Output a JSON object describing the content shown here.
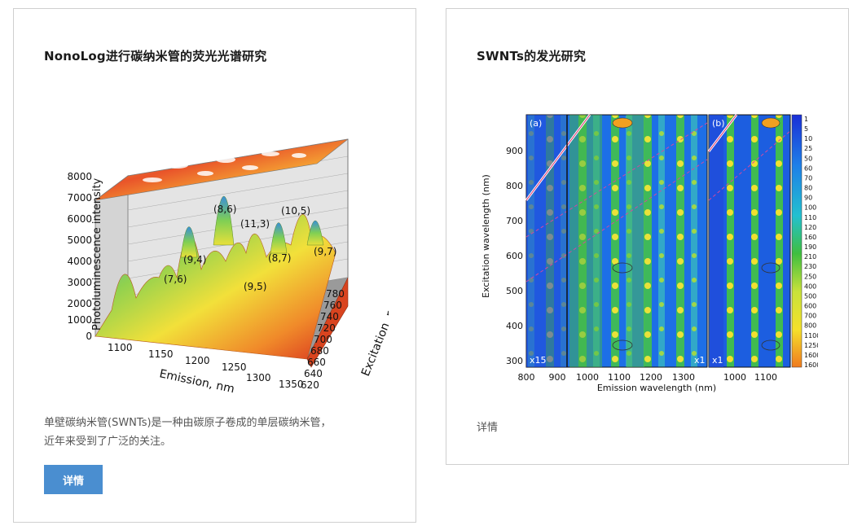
{
  "card1": {
    "title": "NonoLog进行碳纳米管的荧光光谱研究",
    "description_line1": "单壁碳纳米管(SWNTs)是一种由碳原子卷成的单层碳纳米管，",
    "description_line2": "近年来受到了广泛的关注。",
    "button_label": "详情",
    "figure": {
      "y_axis_label": "Photoluminescence intensity",
      "y_ticks": [
        "8000",
        "7000",
        "6000",
        "5000",
        "4000",
        "3000",
        "2000",
        "1000",
        "0"
      ],
      "x_axis_label": "Emission, nm",
      "x_ticks": [
        "1100",
        "1150",
        "1200",
        "1250",
        "1300",
        "1350"
      ],
      "z_axis_label": "Excitation, nm",
      "z_ticks": [
        "780",
        "760",
        "740",
        "720",
        "700",
        "680",
        "660",
        "640",
        "620"
      ],
      "peak_labels": [
        "(8,6)",
        "(11,3)",
        "(10,5)",
        "(9,4)",
        "(7,6)",
        "(8,7)",
        "(9,7)",
        "(9,5)"
      ]
    }
  },
  "card2": {
    "title": "SWNTs的发光研究",
    "link_label": "详情",
    "figure": {
      "y_axis_label": "Excitation wavelength (nm)",
      "y_ticks": [
        "900",
        "800",
        "700",
        "600",
        "500",
        "400",
        "300"
      ],
      "x_axis_label": "Emission wavelength (nm)",
      "x_ticks_a": [
        "800",
        "900",
        "1000",
        "1100",
        "1200",
        "1300"
      ],
      "x_ticks_b": [
        "1000",
        "1100"
      ],
      "panel_a": "(a)",
      "panel_b": "(b)",
      "scale_a_left": "x15",
      "scale_a_right": "x1",
      "scale_b": "x1",
      "colorbar_ticks": [
        "1",
        "5",
        "10",
        "25",
        "50",
        "60",
        "70",
        "80",
        "90",
        "100",
        "110",
        "120",
        "160",
        "190",
        "210",
        "230",
        "250",
        "400",
        "500",
        "600",
        "700",
        "800",
        "1100",
        "1250",
        "1600",
        "1600"
      ]
    }
  },
  "colors": {
    "accent": "#4a8ed0",
    "border": "#cfcfcf"
  }
}
